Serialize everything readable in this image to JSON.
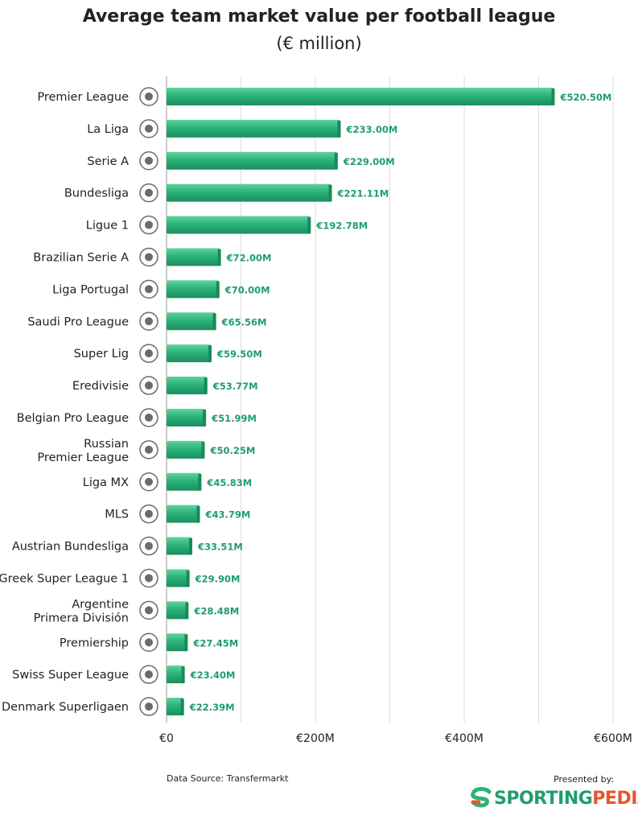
{
  "chart_data": {
    "type": "bar",
    "orientation": "horizontal",
    "title": "Average team market value per football league",
    "subtitle": "(€ million)",
    "categories": [
      "Premier League",
      "La Liga",
      "Serie A",
      "Bundesliga",
      "Ligue 1",
      "Brazilian Serie A",
      "Liga Portugal",
      "Saudi Pro League",
      "Super Lig",
      "Eredivisie",
      "Belgian Pro League",
      "Russian\nPremier League",
      "Liga MX",
      "MLS",
      "Austrian Bundesliga",
      "Greek Super League 1",
      "Argentine\nPrimera División",
      "Premiership",
      "Swiss Super League",
      "Denmark Superligaen"
    ],
    "values": [
      520.5,
      233.0,
      229.0,
      221.11,
      192.78,
      72.0,
      70.0,
      65.56,
      59.5,
      53.77,
      51.99,
      50.25,
      45.83,
      43.79,
      33.51,
      29.9,
      28.48,
      27.45,
      23.4,
      22.39
    ],
    "value_labels": [
      "€520.50M",
      "€233.00M",
      "€229.00M",
      "€221.11M",
      "€192.78M",
      "€72.00M",
      "€70.00M",
      "€65.56M",
      "€59.50M",
      "€53.77M",
      "€51.99M",
      "€50.25M",
      "€45.83M",
      "€43.79M",
      "€33.51M",
      "€29.90M",
      "€28.48M",
      "€27.45M",
      "€23.40M",
      "€22.39M"
    ],
    "xlim": [
      0,
      600
    ],
    "xticks": [
      0,
      200,
      400,
      600
    ],
    "xtick_labels": [
      "€0",
      "€200M",
      "€400M",
      "€600M"
    ],
    "grid": true,
    "bar_color": "#2bb37a",
    "value_label_color": "#1f9d6b"
  },
  "footer": {
    "source": "Data Source: Transfermarkt",
    "presented_by": "Presented by:",
    "brand_part1": "SPORTING",
    "brand_part2": "PEDIA"
  }
}
